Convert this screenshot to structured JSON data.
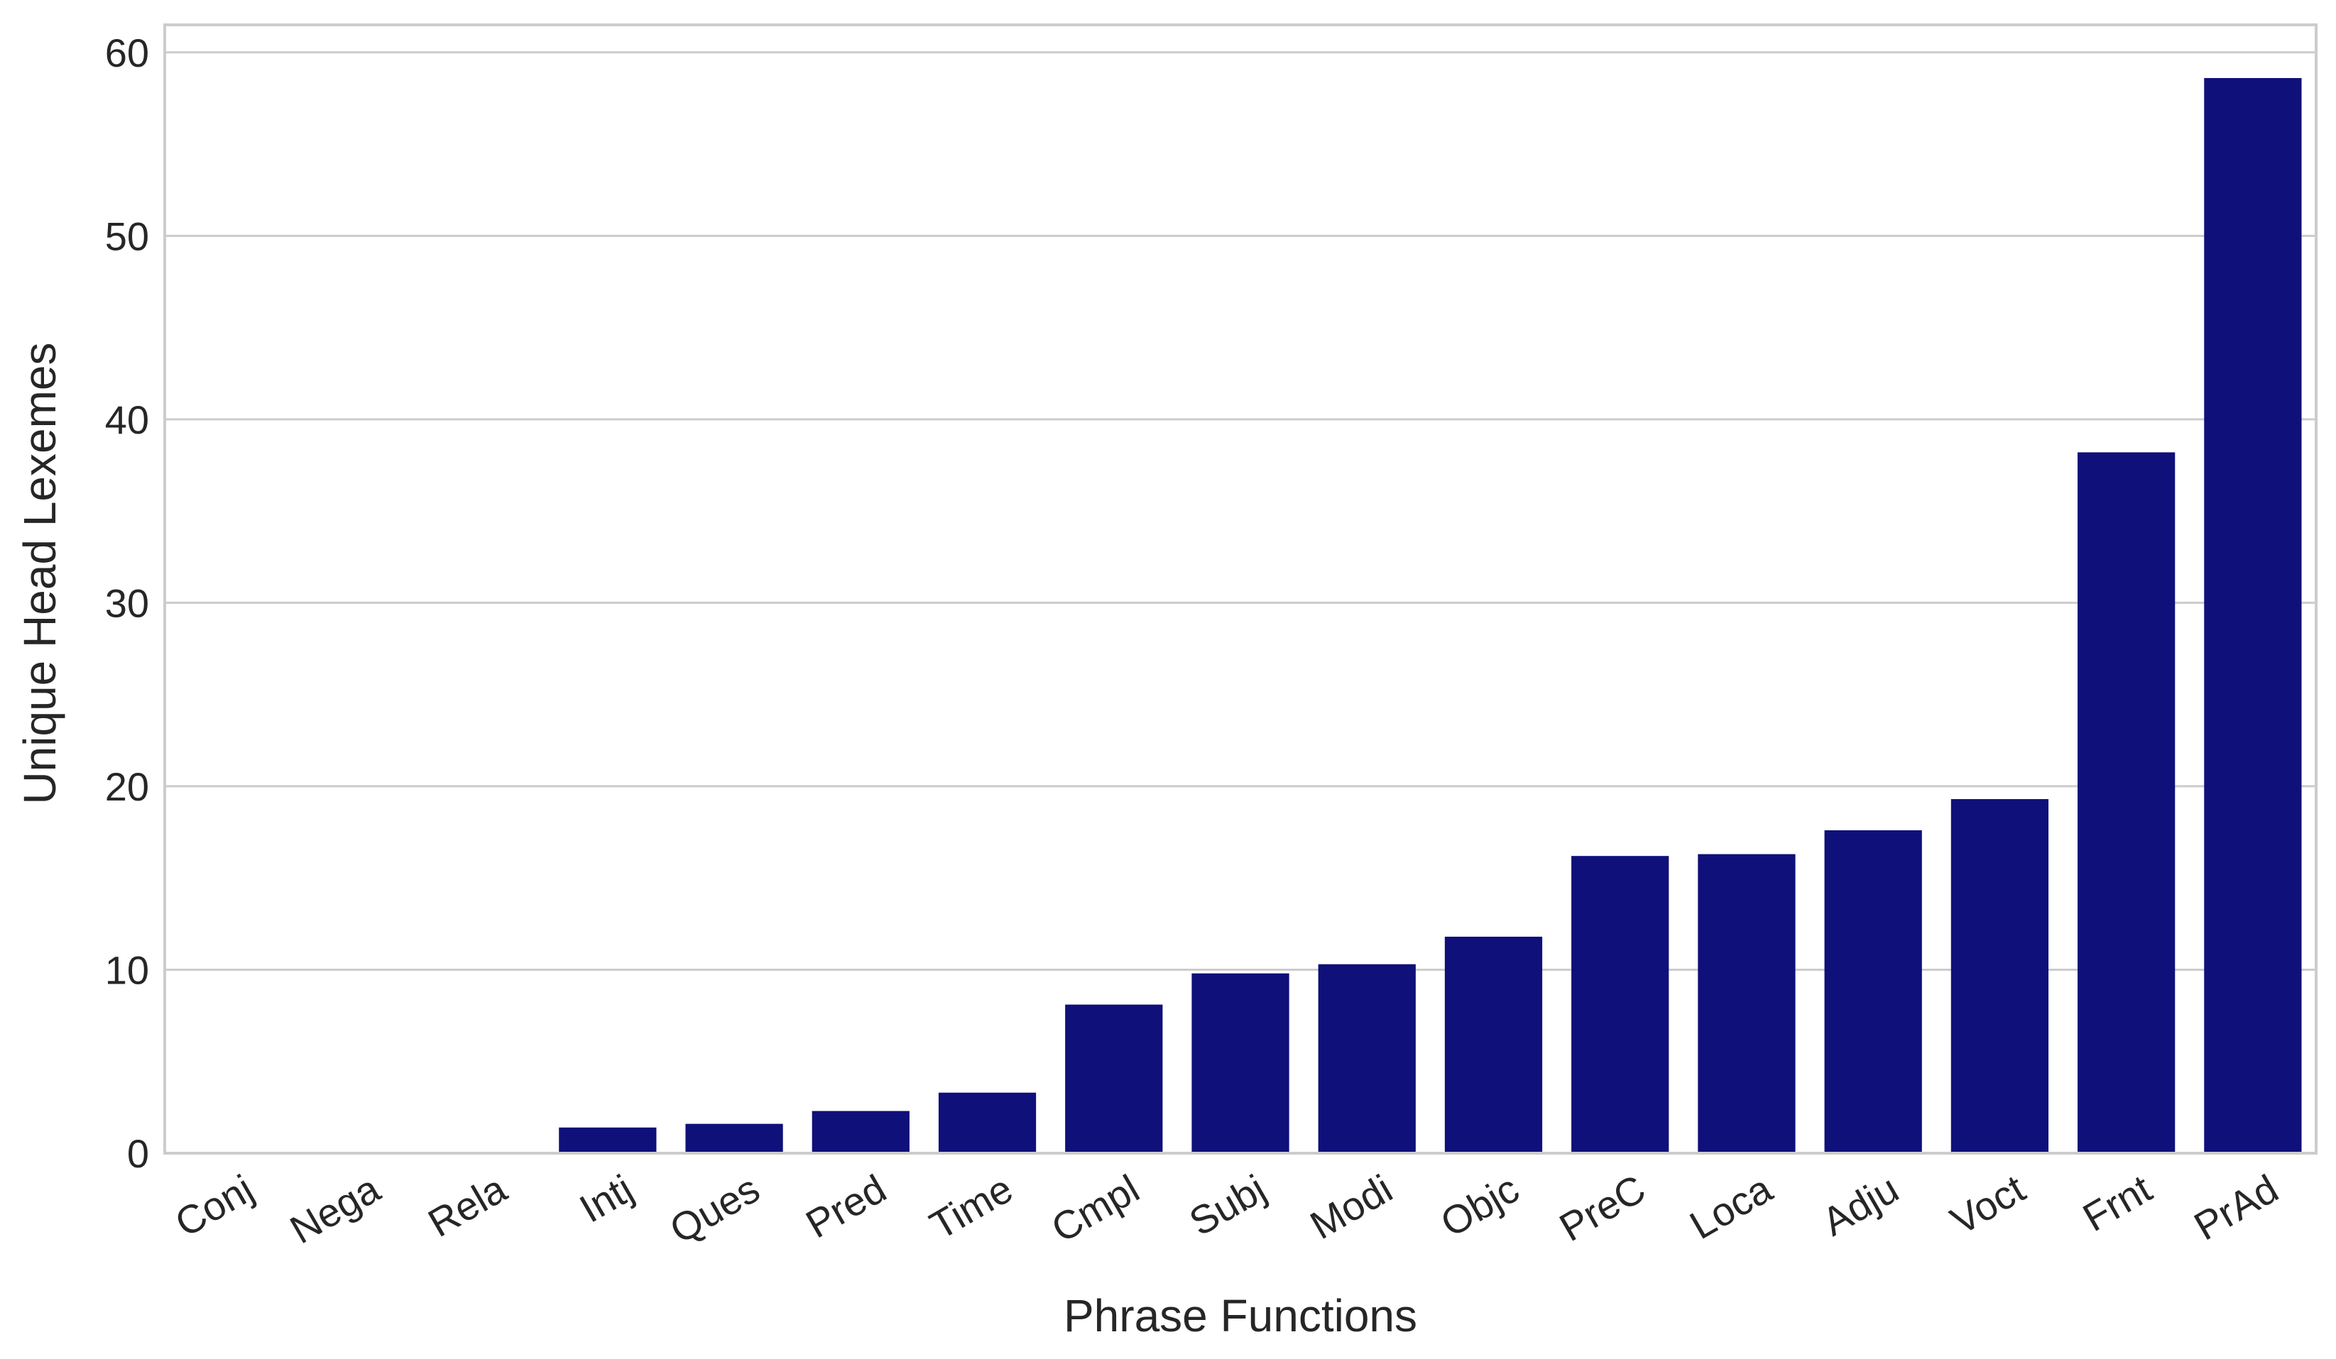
{
  "chart_data": {
    "type": "bar",
    "title": "",
    "xlabel": "Phrase Functions",
    "ylabel": "Unique Head Lexemes",
    "categories": [
      "Conj",
      "Nega",
      "Rela",
      "Intj",
      "Ques",
      "Pred",
      "Time",
      "Cmpl",
      "Subj",
      "Modi",
      "Objc",
      "PreC",
      "Loca",
      "Adju",
      "Voct",
      "Frnt",
      "PrAd"
    ],
    "values": [
      0,
      0,
      0,
      1.4,
      1.6,
      2.3,
      3.3,
      8.1,
      9.8,
      10.3,
      11.8,
      16.2,
      16.3,
      17.6,
      19.3,
      38.2,
      58.6
    ],
    "ylim": [
      0,
      61.5
    ],
    "yticks": [
      0,
      10,
      20,
      30,
      40,
      50,
      60
    ],
    "grid": "horizontal",
    "bar_color": "#0f1079"
  }
}
